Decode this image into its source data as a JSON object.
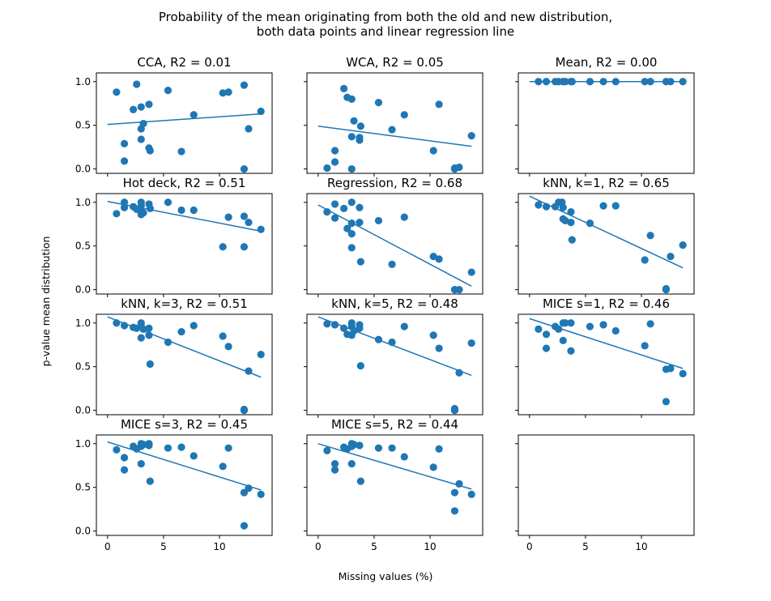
{
  "figure": {
    "suptitle_lines": [
      "Probability of the mean originating from both the old and new distribution,",
      "both data points and linear regression line"
    ],
    "xlabel": "Missing values (%)",
    "ylabel": "p-value mean distribution",
    "point_color": "#1f77b4",
    "line_color": "#1f77b4"
  },
  "chart_data": [
    {
      "type": "scatter",
      "title": "CCA, R2 = 0.01",
      "xlim": [
        -1,
        14.7
      ],
      "ylim": [
        -0.05,
        1.1
      ],
      "xticks": [
        0,
        5,
        10
      ],
      "yticks": [
        "0.0",
        "0.5",
        "1.0"
      ],
      "points": [
        [
          0.8,
          0.88
        ],
        [
          1.5,
          0.29
        ],
        [
          1.5,
          0.09
        ],
        [
          2.3,
          0.68
        ],
        [
          2.6,
          0.97
        ],
        [
          3.0,
          0.71
        ],
        [
          3.0,
          0.46
        ],
        [
          3.0,
          0.34
        ],
        [
          3.2,
          0.52
        ],
        [
          3.7,
          0.74
        ],
        [
          3.7,
          0.24
        ],
        [
          3.8,
          0.21
        ],
        [
          5.4,
          0.9
        ],
        [
          6.6,
          0.2
        ],
        [
          7.7,
          0.62
        ],
        [
          10.3,
          0.87
        ],
        [
          10.8,
          0.88
        ],
        [
          12.2,
          0.96
        ],
        [
          12.2,
          0.0
        ],
        [
          12.6,
          0.46
        ],
        [
          13.7,
          0.66
        ]
      ],
      "regression": [
        [
          0,
          0.51
        ],
        [
          13.7,
          0.63
        ]
      ]
    },
    {
      "type": "scatter",
      "title": "WCA, R2 = 0.05",
      "xlim": [
        -1,
        14.7
      ],
      "ylim": [
        -0.05,
        1.1
      ],
      "xticks": [
        0,
        5,
        10
      ],
      "yticks": [
        "0.0",
        "0.5",
        "1.0"
      ],
      "points": [
        [
          0.8,
          0.01
        ],
        [
          1.5,
          0.21
        ],
        [
          1.5,
          0.08
        ],
        [
          2.3,
          0.92
        ],
        [
          2.6,
          0.82
        ],
        [
          3.0,
          0.8
        ],
        [
          3.0,
          0.37
        ],
        [
          3.0,
          0.0
        ],
        [
          3.2,
          0.55
        ],
        [
          3.7,
          0.36
        ],
        [
          3.7,
          0.33
        ],
        [
          3.8,
          0.49
        ],
        [
          5.4,
          0.76
        ],
        [
          6.6,
          0.45
        ],
        [
          7.7,
          0.62
        ],
        [
          10.3,
          0.21
        ],
        [
          10.8,
          0.74
        ],
        [
          12.2,
          0.0
        ],
        [
          12.2,
          0.01
        ],
        [
          12.6,
          0.02
        ],
        [
          13.7,
          0.38
        ]
      ],
      "regression": [
        [
          0,
          0.49
        ],
        [
          13.7,
          0.26
        ]
      ]
    },
    {
      "type": "scatter",
      "title": "Mean, R2 = 0.00",
      "xlim": [
        -1,
        14.7
      ],
      "ylim": [
        -0.05,
        1.1
      ],
      "xticks": [
        0,
        5,
        10
      ],
      "yticks": [
        "0.0",
        "0.5",
        "1.0"
      ],
      "points": [
        [
          0.8,
          1.0
        ],
        [
          1.5,
          1.0
        ],
        [
          2.3,
          1.0
        ],
        [
          2.6,
          1.0
        ],
        [
          3.0,
          1.0
        ],
        [
          3.2,
          1.0
        ],
        [
          3.7,
          1.0
        ],
        [
          3.8,
          1.0
        ],
        [
          5.4,
          1.0
        ],
        [
          6.6,
          1.0
        ],
        [
          7.7,
          1.0
        ],
        [
          10.3,
          1.0
        ],
        [
          10.8,
          1.0
        ],
        [
          12.2,
          1.0
        ],
        [
          12.6,
          1.0
        ],
        [
          13.7,
          1.0
        ]
      ],
      "regression": [
        [
          0,
          1.0
        ],
        [
          13.7,
          1.0
        ]
      ]
    },
    {
      "type": "scatter",
      "title": "Hot deck, R2 = 0.51",
      "xlim": [
        -1,
        14.7
      ],
      "ylim": [
        -0.05,
        1.1
      ],
      "xticks": [
        0,
        5,
        10
      ],
      "yticks": [
        "0.0",
        "0.5",
        "1.0"
      ],
      "points": [
        [
          0.8,
          0.87
        ],
        [
          1.5,
          1.0
        ],
        [
          1.5,
          0.94
        ],
        [
          2.3,
          0.95
        ],
        [
          2.6,
          0.92
        ],
        [
          3.0,
          1.0
        ],
        [
          3.0,
          0.96
        ],
        [
          3.0,
          0.9
        ],
        [
          3.0,
          0.86
        ],
        [
          3.2,
          0.88
        ],
        [
          3.7,
          0.98
        ],
        [
          3.8,
          0.93
        ],
        [
          5.4,
          1.0
        ],
        [
          6.6,
          0.91
        ],
        [
          7.7,
          0.91
        ],
        [
          10.3,
          0.49
        ],
        [
          10.8,
          0.83
        ],
        [
          12.2,
          0.84
        ],
        [
          12.2,
          0.49
        ],
        [
          12.6,
          0.77
        ],
        [
          13.7,
          0.69
        ]
      ],
      "regression": [
        [
          0,
          1.01
        ],
        [
          13.7,
          0.67
        ]
      ]
    },
    {
      "type": "scatter",
      "title": "Regression, R2 = 0.68",
      "xlim": [
        -1,
        14.7
      ],
      "ylim": [
        -0.05,
        1.1
      ],
      "xticks": [
        0,
        5,
        10
      ],
      "yticks": [
        "0.0",
        "0.5",
        "1.0"
      ],
      "points": [
        [
          0.8,
          0.89
        ],
        [
          1.5,
          0.98
        ],
        [
          1.5,
          0.82
        ],
        [
          2.3,
          0.93
        ],
        [
          2.6,
          0.7
        ],
        [
          3.0,
          1.0
        ],
        [
          3.0,
          0.76
        ],
        [
          3.0,
          0.64
        ],
        [
          3.0,
          0.48
        ],
        [
          3.7,
          0.94
        ],
        [
          3.7,
          0.77
        ],
        [
          3.8,
          0.32
        ],
        [
          5.4,
          0.79
        ],
        [
          6.6,
          0.29
        ],
        [
          7.7,
          0.83
        ],
        [
          10.3,
          0.38
        ],
        [
          10.8,
          0.35
        ],
        [
          12.2,
          0.0
        ],
        [
          12.6,
          0.0
        ],
        [
          13.7,
          0.2
        ]
      ],
      "regression": [
        [
          0,
          0.97
        ],
        [
          13.7,
          0.04
        ]
      ]
    },
    {
      "type": "scatter",
      "title": "kNN, k=1, R2 = 0.65",
      "xlim": [
        -1,
        14.7
      ],
      "ylim": [
        -0.05,
        1.1
      ],
      "xticks": [
        0,
        5,
        10
      ],
      "yticks": [
        "0.0",
        "0.5",
        "1.0"
      ],
      "points": [
        [
          0.8,
          0.97
        ],
        [
          1.5,
          0.95
        ],
        [
          2.3,
          0.95
        ],
        [
          2.6,
          1.0
        ],
        [
          2.9,
          1.0
        ],
        [
          3.0,
          0.94
        ],
        [
          3.0,
          0.81
        ],
        [
          3.2,
          0.79
        ],
        [
          3.7,
          0.89
        ],
        [
          3.7,
          0.77
        ],
        [
          3.8,
          0.57
        ],
        [
          5.4,
          0.76
        ],
        [
          6.6,
          0.96
        ],
        [
          7.7,
          0.96
        ],
        [
          10.3,
          0.34
        ],
        [
          10.8,
          0.62
        ],
        [
          12.2,
          0.01
        ],
        [
          12.2,
          0.0
        ],
        [
          12.6,
          0.38
        ],
        [
          13.7,
          0.51
        ]
      ],
      "regression": [
        [
          0,
          1.07
        ],
        [
          13.7,
          0.25
        ]
      ]
    },
    {
      "type": "scatter",
      "title": "kNN, k=3, R2 = 0.51",
      "xlim": [
        -1,
        14.7
      ],
      "ylim": [
        -0.05,
        1.1
      ],
      "xticks": [
        0,
        5,
        10
      ],
      "yticks": [
        "0.0",
        "0.5",
        "1.0"
      ],
      "points": [
        [
          0.8,
          1.0
        ],
        [
          1.5,
          0.97
        ],
        [
          2.3,
          0.95
        ],
        [
          2.6,
          0.94
        ],
        [
          3.0,
          1.0
        ],
        [
          3.0,
          0.96
        ],
        [
          3.0,
          0.83
        ],
        [
          3.2,
          0.93
        ],
        [
          3.7,
          0.94
        ],
        [
          3.7,
          0.86
        ],
        [
          3.8,
          0.53
        ],
        [
          5.4,
          0.78
        ],
        [
          6.6,
          0.9
        ],
        [
          7.7,
          0.97
        ],
        [
          10.3,
          0.85
        ],
        [
          10.8,
          0.73
        ],
        [
          12.2,
          0.01
        ],
        [
          12.2,
          0.0
        ],
        [
          12.6,
          0.45
        ],
        [
          13.7,
          0.64
        ]
      ],
      "regression": [
        [
          0,
          1.07
        ],
        [
          13.7,
          0.38
        ]
      ]
    },
    {
      "type": "scatter",
      "title": "kNN, k=5, R2 = 0.48",
      "xlim": [
        -1,
        14.7
      ],
      "ylim": [
        -0.05,
        1.1
      ],
      "xticks": [
        0,
        5,
        10
      ],
      "yticks": [
        "0.0",
        "0.5",
        "1.0"
      ],
      "points": [
        [
          0.8,
          0.99
        ],
        [
          1.5,
          0.98
        ],
        [
          2.3,
          0.94
        ],
        [
          2.6,
          0.87
        ],
        [
          3.0,
          1.0
        ],
        [
          3.0,
          0.96
        ],
        [
          3.0,
          0.86
        ],
        [
          3.2,
          0.91
        ],
        [
          3.7,
          0.98
        ],
        [
          3.7,
          0.94
        ],
        [
          3.8,
          0.51
        ],
        [
          5.4,
          0.81
        ],
        [
          6.6,
          0.78
        ],
        [
          7.7,
          0.96
        ],
        [
          10.3,
          0.86
        ],
        [
          10.8,
          0.71
        ],
        [
          12.2,
          0.02
        ],
        [
          12.2,
          0.0
        ],
        [
          12.6,
          0.43
        ],
        [
          13.7,
          0.77
        ]
      ],
      "regression": [
        [
          0,
          1.07
        ],
        [
          13.7,
          0.4
        ]
      ]
    },
    {
      "type": "scatter",
      "title": "MICE s=1, R2 = 0.46",
      "xlim": [
        -1,
        14.7
      ],
      "ylim": [
        -0.05,
        1.1
      ],
      "xticks": [
        0,
        5,
        10
      ],
      "yticks": [
        "0.0",
        "0.5",
        "1.0"
      ],
      "points": [
        [
          0.8,
          0.93
        ],
        [
          1.5,
          0.87
        ],
        [
          1.5,
          0.71
        ],
        [
          2.3,
          0.96
        ],
        [
          2.6,
          0.93
        ],
        [
          3.0,
          1.0
        ],
        [
          3.0,
          0.8
        ],
        [
          3.2,
          1.0
        ],
        [
          3.7,
          1.0
        ],
        [
          3.7,
          0.68
        ],
        [
          5.4,
          0.96
        ],
        [
          6.6,
          0.98
        ],
        [
          7.7,
          0.91
        ],
        [
          10.3,
          0.74
        ],
        [
          10.8,
          0.99
        ],
        [
          12.2,
          0.1
        ],
        [
          12.2,
          0.47
        ],
        [
          12.6,
          0.48
        ],
        [
          13.7,
          0.42
        ]
      ],
      "regression": [
        [
          0,
          1.05
        ],
        [
          13.7,
          0.48
        ]
      ]
    },
    {
      "type": "scatter",
      "title": "MICE s=3, R2 = 0.45",
      "xlim": [
        -1,
        14.7
      ],
      "ylim": [
        -0.05,
        1.1
      ],
      "xticks": [
        0,
        5,
        10
      ],
      "yticks": [
        "0.0",
        "0.5",
        "1.0"
      ],
      "points": [
        [
          0.8,
          0.93
        ],
        [
          1.5,
          0.84
        ],
        [
          1.5,
          0.7
        ],
        [
          2.3,
          0.97
        ],
        [
          2.6,
          0.94
        ],
        [
          3.0,
          1.0
        ],
        [
          3.0,
          0.97
        ],
        [
          3.0,
          0.77
        ],
        [
          3.2,
          0.99
        ],
        [
          3.7,
          1.0
        ],
        [
          3.7,
          0.98
        ],
        [
          3.8,
          0.57
        ],
        [
          5.4,
          0.95
        ],
        [
          6.6,
          0.96
        ],
        [
          7.7,
          0.86
        ],
        [
          10.3,
          0.74
        ],
        [
          10.8,
          0.95
        ],
        [
          12.2,
          0.06
        ],
        [
          12.2,
          0.44
        ],
        [
          12.6,
          0.49
        ],
        [
          13.7,
          0.42
        ]
      ],
      "regression": [
        [
          0,
          1.02
        ],
        [
          13.7,
          0.47
        ]
      ]
    },
    {
      "type": "scatter",
      "title": "MICE s=5, R2 = 0.44",
      "xlim": [
        -1,
        14.7
      ],
      "ylim": [
        -0.05,
        1.1
      ],
      "xticks": [
        0,
        5,
        10
      ],
      "yticks": [
        "0.0",
        "0.5",
        "1.0"
      ],
      "points": [
        [
          0.8,
          0.92
        ],
        [
          1.5,
          0.77
        ],
        [
          1.5,
          0.7
        ],
        [
          2.3,
          0.96
        ],
        [
          2.6,
          0.94
        ],
        [
          3.0,
          1.0
        ],
        [
          3.0,
          0.97
        ],
        [
          3.0,
          0.77
        ],
        [
          3.2,
          0.99
        ],
        [
          3.7,
          0.98
        ],
        [
          3.8,
          0.57
        ],
        [
          5.4,
          0.95
        ],
        [
          6.6,
          0.95
        ],
        [
          7.7,
          0.85
        ],
        [
          10.3,
          0.73
        ],
        [
          10.8,
          0.94
        ],
        [
          12.2,
          0.23
        ],
        [
          12.2,
          0.44
        ],
        [
          12.6,
          0.54
        ],
        [
          13.7,
          0.42
        ]
      ],
      "regression": [
        [
          0,
          1.0
        ],
        [
          13.7,
          0.48
        ]
      ]
    },
    {
      "type": "scatter",
      "title": "",
      "xlim": [
        -1,
        14.7
      ],
      "ylim": [
        -0.05,
        1.1
      ],
      "xticks": [
        0,
        5,
        10
      ],
      "yticks": [
        "0.0",
        "0.5",
        "1.0"
      ],
      "points": [],
      "regression": []
    }
  ]
}
